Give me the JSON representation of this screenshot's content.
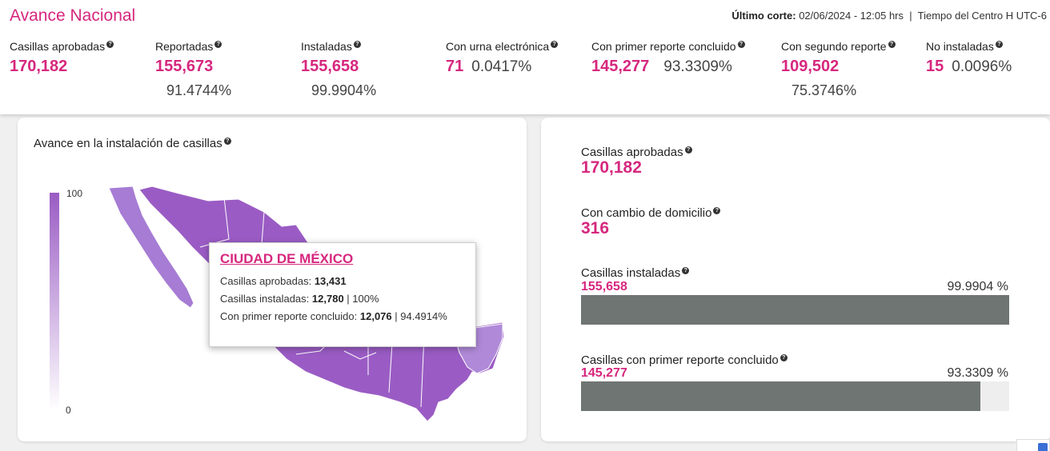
{
  "header": {
    "title": "Avance Nacional",
    "cutoff_label": "Último corte:",
    "cutoff_value": "02/06/2024 - 12:05 hrs",
    "separator": "|",
    "timezone": "Tiempo del Centro H UTC-6"
  },
  "stats": [
    {
      "label": "Casillas aprobadas",
      "value": "170,182",
      "pct": ""
    },
    {
      "label": "Reportadas",
      "value": "155,673",
      "pct": "91.4744%"
    },
    {
      "label": "Instaladas",
      "value": "155,658",
      "pct": "99.9904%"
    },
    {
      "label": "Con urna electrónica",
      "value": "71",
      "pct": "0.0417%"
    },
    {
      "label": "Con primer reporte concluido",
      "value": "145,277",
      "pct": "93.3309%"
    },
    {
      "label": "Con segundo reporte",
      "value": "109,502",
      "pct": "75.3746%"
    },
    {
      "label": "No instaladas",
      "value": "15",
      "pct": "0.0096%"
    }
  ],
  "map": {
    "title": "Avance en la instalación de casillas",
    "legend_max": "100",
    "legend_min": "0",
    "tooltip": {
      "state": "CIUDAD DE MÉXICO",
      "aprobadas_label": "Casillas aprobadas:",
      "aprobadas_value": "13,431",
      "instaladas_label": "Casillas instaladas:",
      "instaladas_value": "12,780",
      "instaladas_pct": "| 100%",
      "reporte_label": "Con primer reporte concluido:",
      "reporte_value": "12,076",
      "reporte_pct": "| 94.4914%"
    }
  },
  "side": {
    "aprobadas_label": "Casillas aprobadas",
    "aprobadas_value": "170,182",
    "domicilio_label": "Con cambio de domicilio",
    "domicilio_value": "316",
    "instaladas_label": "Casillas instaladas",
    "instaladas_value": "155,658",
    "instaladas_pct": "99.9904 %",
    "instaladas_fraction": 0.999904,
    "reporte_label": "Casillas con primer reporte concluido",
    "reporte_value": "145,277",
    "reporte_pct": "93.3309 %",
    "reporte_fraction": 0.933309
  },
  "colors": {
    "accent": "#d6277e",
    "map_fill": "#9a5cc4",
    "bar_fill": "#6f7573"
  },
  "icons": {
    "help": "question-circle-icon"
  }
}
